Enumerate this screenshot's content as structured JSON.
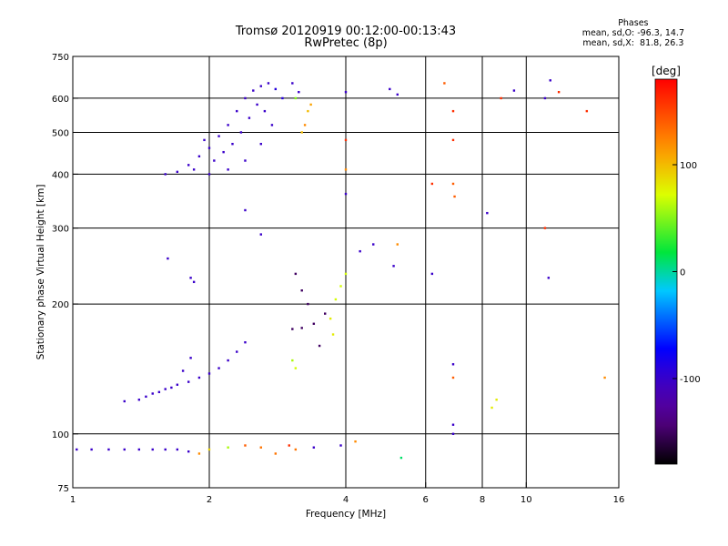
{
  "chart_data": {
    "type": "scatter",
    "title": "Tromsø 20120919 00:12:00-00:13:43",
    "subtitle": "RwPretec (8p)",
    "xlabel": "Frequency [MHz]",
    "ylabel": "Stationary phase Virtual Height [km]",
    "x_scale": "log",
    "y_scale": "log",
    "xlim": [
      1,
      16
    ],
    "ylim": [
      75,
      750
    ],
    "x_ticks": [
      1,
      2,
      4,
      6,
      8,
      10,
      16
    ],
    "x_gridlines": [
      2,
      4,
      6,
      8,
      10
    ],
    "y_ticks": [
      75,
      100,
      200,
      300,
      400,
      500,
      600,
      750
    ],
    "y_gridlines": [
      100,
      200,
      300,
      400,
      500,
      600
    ],
    "grid": true,
    "stats": {
      "heading": "Phases",
      "o_line": "mean, sd,O: -96.3, 14.7",
      "x_line": "mean, sd,X:  81.8, 26.3"
    },
    "colorbar": {
      "label": "[deg]",
      "range": [
        -180,
        180
      ],
      "ticks": [
        100,
        0,
        -100
      ],
      "colormap": "rainbow (black→purple→blue→cyan→green→yellow→red)"
    },
    "series": [
      {
        "points": [
          [
            1.6,
            400,
            -100
          ],
          [
            1.7,
            405,
            -100
          ],
          [
            1.8,
            420,
            -100
          ],
          [
            1.9,
            440,
            -100
          ],
          [
            2.0,
            460,
            -100
          ],
          [
            2.1,
            490,
            -100
          ],
          [
            2.2,
            520,
            -100
          ],
          [
            2.3,
            560,
            -100
          ],
          [
            2.4,
            600,
            -100
          ],
          [
            2.5,
            625,
            -100
          ],
          [
            2.6,
            640,
            -100
          ],
          [
            2.7,
            650,
            -100
          ],
          [
            2.8,
            630,
            -90
          ],
          [
            2.9,
            600,
            -90
          ],
          [
            1.95,
            480,
            -100
          ],
          [
            2.05,
            430,
            -100
          ],
          [
            2.15,
            450,
            -100
          ],
          [
            2.25,
            470,
            -100
          ],
          [
            2.35,
            500,
            -100
          ],
          [
            2.45,
            540,
            -100
          ],
          [
            2.55,
            580,
            -100
          ],
          [
            2.65,
            560,
            -100
          ],
          [
            2.75,
            520,
            -100
          ],
          [
            1.85,
            410,
            -100
          ],
          [
            2.0,
            400,
            -100
          ],
          [
            2.2,
            410,
            -100
          ],
          [
            2.4,
            430,
            -100
          ],
          [
            2.6,
            470,
            -100
          ],
          [
            3.05,
            650,
            -100
          ],
          [
            3.15,
            620,
            -100
          ],
          [
            3.1,
            600,
            50
          ],
          [
            3.2,
            500,
            100
          ],
          [
            3.25,
            520,
            120
          ],
          [
            3.3,
            560,
            100
          ],
          [
            3.35,
            580,
            110
          ],
          [
            1.7,
            130,
            -100
          ],
          [
            1.8,
            132,
            -100
          ],
          [
            1.9,
            135,
            -100
          ],
          [
            2.0,
            138,
            -100
          ],
          [
            2.1,
            142,
            -100
          ],
          [
            2.2,
            148,
            -100
          ],
          [
            2.3,
            155,
            -100
          ],
          [
            2.4,
            163,
            -100
          ],
          [
            1.6,
            127,
            -100
          ],
          [
            1.5,
            124,
            -100
          ],
          [
            1.4,
            120,
            -100
          ],
          [
            1.3,
            119,
            -100
          ],
          [
            1.45,
            122,
            -100
          ],
          [
            1.55,
            125,
            -100
          ],
          [
            1.65,
            128,
            -100
          ],
          [
            1.75,
            140,
            -100
          ],
          [
            1.82,
            150,
            -100
          ],
          [
            1.02,
            92,
            -100
          ],
          [
            1.1,
            92,
            -100
          ],
          [
            1.2,
            92,
            -100
          ],
          [
            1.3,
            92,
            -100
          ],
          [
            1.4,
            92,
            -100
          ],
          [
            1.5,
            92,
            -100
          ],
          [
            1.6,
            92,
            -100
          ],
          [
            1.7,
            92,
            -100
          ],
          [
            1.8,
            91,
            -100
          ],
          [
            1.9,
            90,
            120
          ],
          [
            2.0,
            92,
            90
          ],
          [
            2.2,
            93,
            60
          ],
          [
            2.4,
            94,
            140
          ],
          [
            2.6,
            93,
            130
          ],
          [
            3.0,
            94,
            160
          ],
          [
            3.1,
            92,
            130
          ],
          [
            3.4,
            93,
            -100
          ],
          [
            3.9,
            94,
            -100
          ],
          [
            4.2,
            96,
            120
          ],
          [
            3.1,
            235,
            -150
          ],
          [
            3.2,
            215,
            -150
          ],
          [
            3.3,
            200,
            -150
          ],
          [
            3.05,
            175,
            -150
          ],
          [
            3.2,
            176,
            -150
          ],
          [
            3.4,
            180,
            -150
          ],
          [
            3.6,
            190,
            -150
          ],
          [
            3.8,
            205,
            70
          ],
          [
            3.9,
            220,
            70
          ],
          [
            4.0,
            235,
            70
          ],
          [
            3.7,
            185,
            80
          ],
          [
            3.75,
            170,
            80
          ],
          [
            3.05,
            148,
            60
          ],
          [
            3.1,
            142,
            70
          ],
          [
            3.5,
            160,
            -150
          ],
          [
            1.62,
            255,
            -100
          ],
          [
            1.82,
            230,
            -100
          ],
          [
            1.85,
            225,
            -100
          ],
          [
            2.4,
            330,
            -100
          ],
          [
            2.6,
            290,
            -100
          ],
          [
            4.0,
            620,
            -100
          ],
          [
            4.0,
            480,
            160
          ],
          [
            4.0,
            410,
            120
          ],
          [
            4.0,
            360,
            -100
          ],
          [
            4.3,
            265,
            -100
          ],
          [
            4.6,
            275,
            -100
          ],
          [
            5.2,
            275,
            120
          ],
          [
            5.1,
            245,
            -100
          ],
          [
            5.0,
            630,
            -100
          ],
          [
            5.2,
            612,
            -100
          ],
          [
            6.2,
            380,
            160
          ],
          [
            6.2,
            235,
            -100
          ],
          [
            6.6,
            650,
            140
          ],
          [
            6.9,
            560,
            160
          ],
          [
            6.9,
            480,
            160
          ],
          [
            6.9,
            380,
            140
          ],
          [
            6.95,
            355,
            140
          ],
          [
            6.9,
            145,
            -100
          ],
          [
            6.9,
            135,
            140
          ],
          [
            6.9,
            105,
            -100
          ],
          [
            6.9,
            100,
            -100
          ],
          [
            8.2,
            325,
            -100
          ],
          [
            8.8,
            600,
            160
          ],
          [
            9.4,
            625,
            -100
          ],
          [
            11.0,
            600,
            -100
          ],
          [
            11.0,
            300,
            160
          ],
          [
            11.2,
            230,
            -100
          ],
          [
            11.8,
            620,
            160
          ],
          [
            11.3,
            660,
            -100
          ],
          [
            13.6,
            560,
            160
          ],
          [
            14.9,
            135,
            120
          ],
          [
            8.6,
            120,
            80
          ],
          [
            8.4,
            115,
            80
          ],
          [
            5.3,
            88,
            10
          ],
          [
            2.8,
            90,
            130
          ]
        ]
      }
    ]
  }
}
